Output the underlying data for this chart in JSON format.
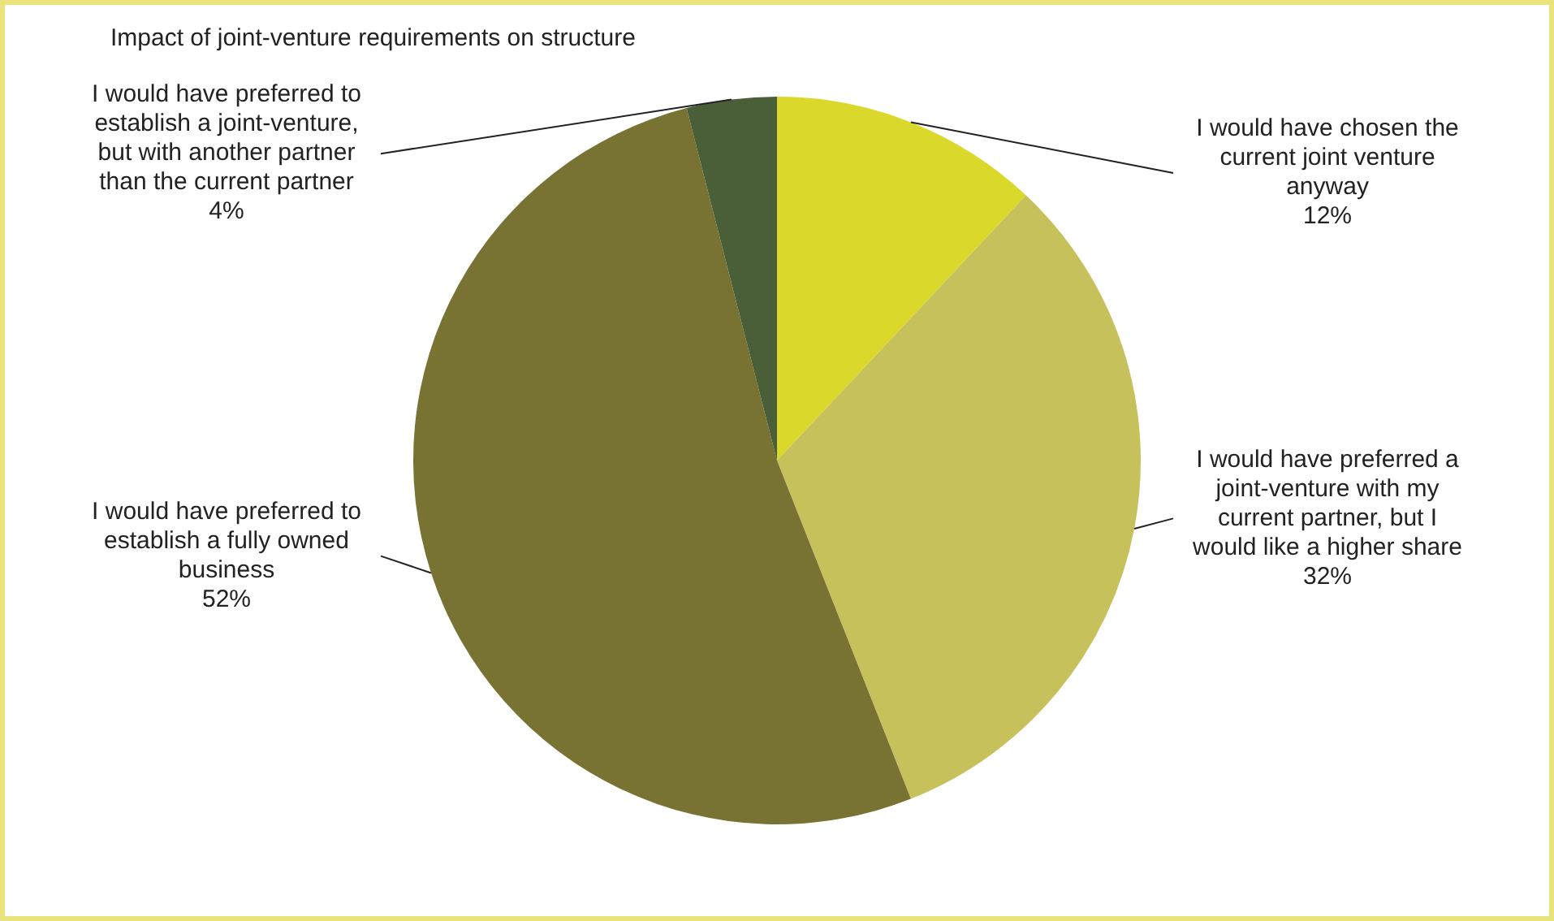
{
  "chart_data": {
    "type": "pie",
    "title": "Impact of joint-venture requirements on structure",
    "categories": [
      "I would have chosen the current joint venture anyway",
      "I would have preferred a joint-venture with my current partner, but I would like a higher share",
      "I would have preferred to establish a fully owned business",
      "I would have preferred to establish a joint-venture, but with another partner than the current partner"
    ],
    "values": [
      12,
      32,
      52,
      4
    ],
    "value_labels": [
      "12%",
      "32%",
      "52%",
      "4%"
    ],
    "colors": [
      "#dbd82c",
      "#c7c15b",
      "#787332",
      "#4a5e37"
    ]
  }
}
